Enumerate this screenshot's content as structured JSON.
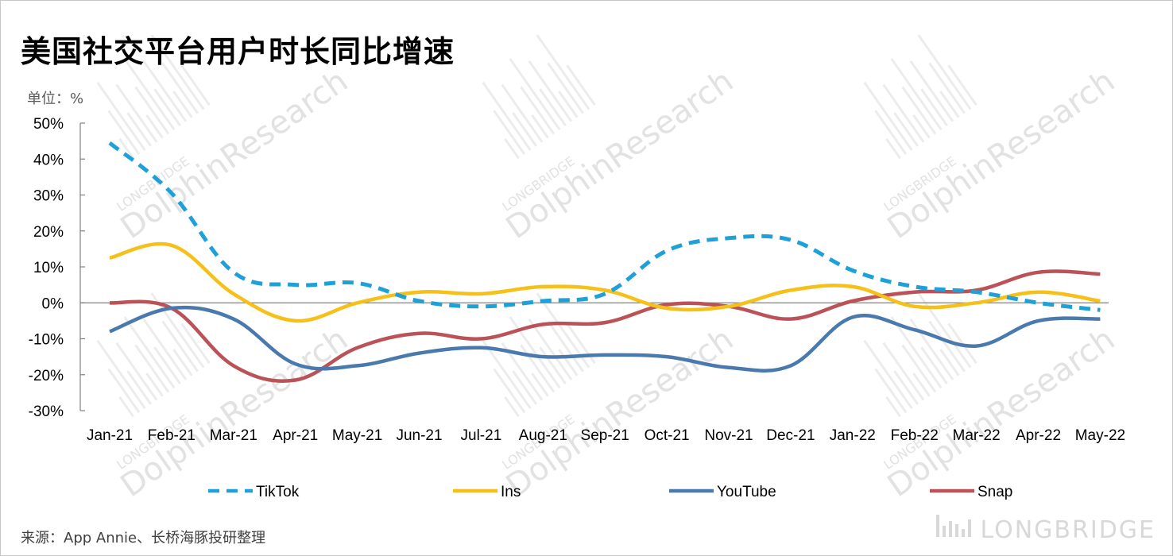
{
  "title": "美国社交平台用户时长同比增速",
  "unit_label": "单位：%",
  "source": "来源：App Annie、长桥海豚投研整理",
  "brand": "LONGBRIDGE",
  "watermark": {
    "top": "LONGBRIDGE",
    "main": "DolphinResearch"
  },
  "chart_data": {
    "type": "line",
    "categories": [
      "Jan-21",
      "Feb-21",
      "Mar-21",
      "Apr-21",
      "May-21",
      "Jun-21",
      "Jul-21",
      "Aug-21",
      "Sep-21",
      "Oct-21",
      "Nov-21",
      "Dec-21",
      "Jan-22",
      "Feb-22",
      "Mar-22",
      "Apr-22",
      "May-22"
    ],
    "ylim": [
      -30,
      50
    ],
    "yticks": [
      -30,
      -20,
      -10,
      0,
      10,
      20,
      30,
      40,
      50
    ],
    "ytick_labels": [
      "-30%",
      "-20%",
      "-10%",
      "0%",
      "10%",
      "20%",
      "30%",
      "40%",
      "50%"
    ],
    "grid": false,
    "legend_position": "bottom",
    "series": [
      {
        "name": "TikTok",
        "color": "#1ea0d8",
        "dash": true,
        "values": [
          44.5,
          30.5,
          8.5,
          5.0,
          5.5,
          0.5,
          -1.0,
          0.5,
          2.5,
          14.5,
          18.0,
          17.5,
          9.0,
          4.5,
          3.0,
          0.0,
          -2.0
        ]
      },
      {
        "name": "Ins",
        "color": "#f5c018",
        "dash": false,
        "values": [
          12.5,
          16.0,
          2.5,
          -5.0,
          0.0,
          3.0,
          2.5,
          4.5,
          3.5,
          -1.5,
          -1.0,
          3.5,
          4.5,
          -1.0,
          0.0,
          3.0,
          0.5
        ]
      },
      {
        "name": "YouTube",
        "color": "#4a79ad",
        "dash": false,
        "values": [
          -8.0,
          -1.5,
          -4.5,
          -17.0,
          -17.5,
          -14.0,
          -12.5,
          -15.0,
          -14.5,
          -15.0,
          -18.0,
          -17.5,
          -4.0,
          -7.5,
          -12.0,
          -5.0,
          -4.5
        ]
      },
      {
        "name": "Snap",
        "color": "#bb5257",
        "dash": false,
        "values": [
          0.0,
          -1.5,
          -17.5,
          -21.5,
          -12.5,
          -8.5,
          -10.0,
          -6.0,
          -5.5,
          -0.5,
          -1.0,
          -4.5,
          0.5,
          3.0,
          3.5,
          8.5,
          8.0
        ]
      }
    ]
  }
}
